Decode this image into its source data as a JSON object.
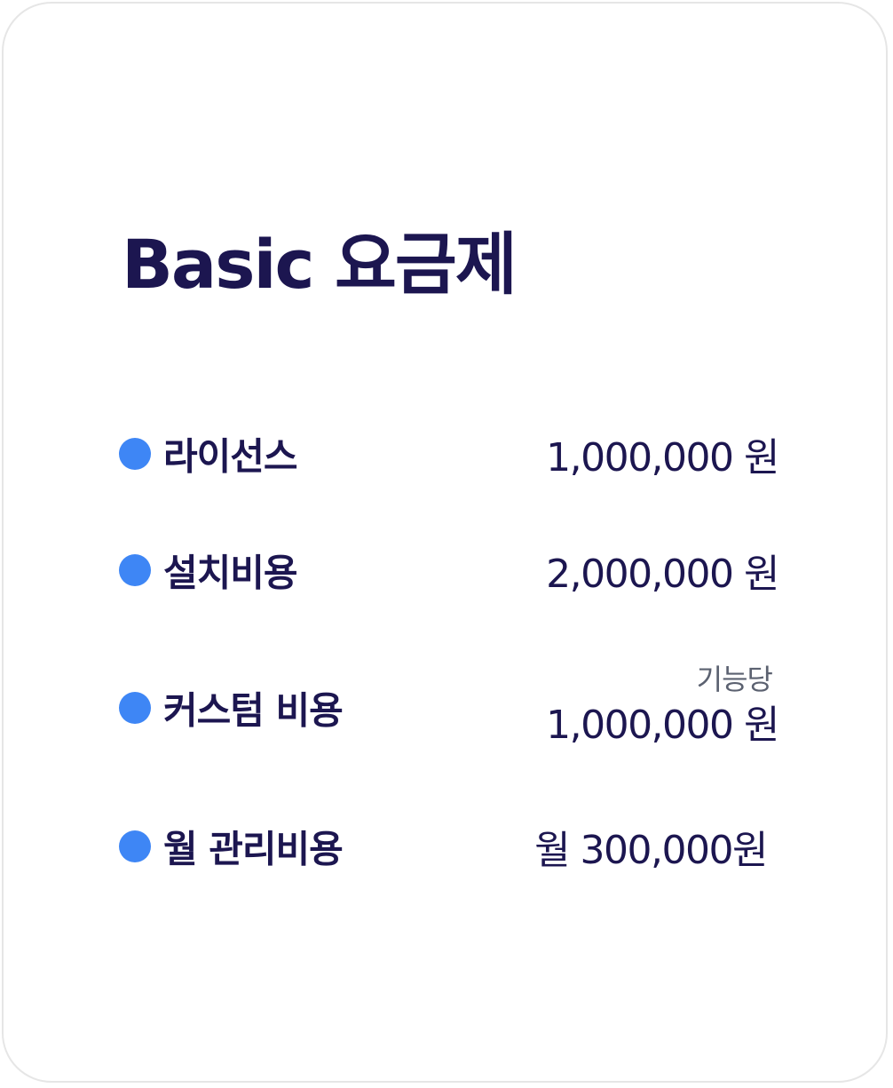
{
  "plan": {
    "title": "Basic 요금제",
    "items": [
      {
        "label": "라이선스",
        "value": "1,000,000 원"
      },
      {
        "label": "설치비용",
        "value": "2,000,000 원"
      },
      {
        "label": "커스텀 비용",
        "note": "기능당",
        "value": "1,000,000 원"
      },
      {
        "label": "월 관리비용",
        "value": "월 300,000원"
      }
    ]
  },
  "colors": {
    "accent": "#3e86f5",
    "text": "#1c1650",
    "note": "#5b6170",
    "border": "#e6e6e6"
  },
  "icons": [
    "bullet-dot-icon"
  ]
}
